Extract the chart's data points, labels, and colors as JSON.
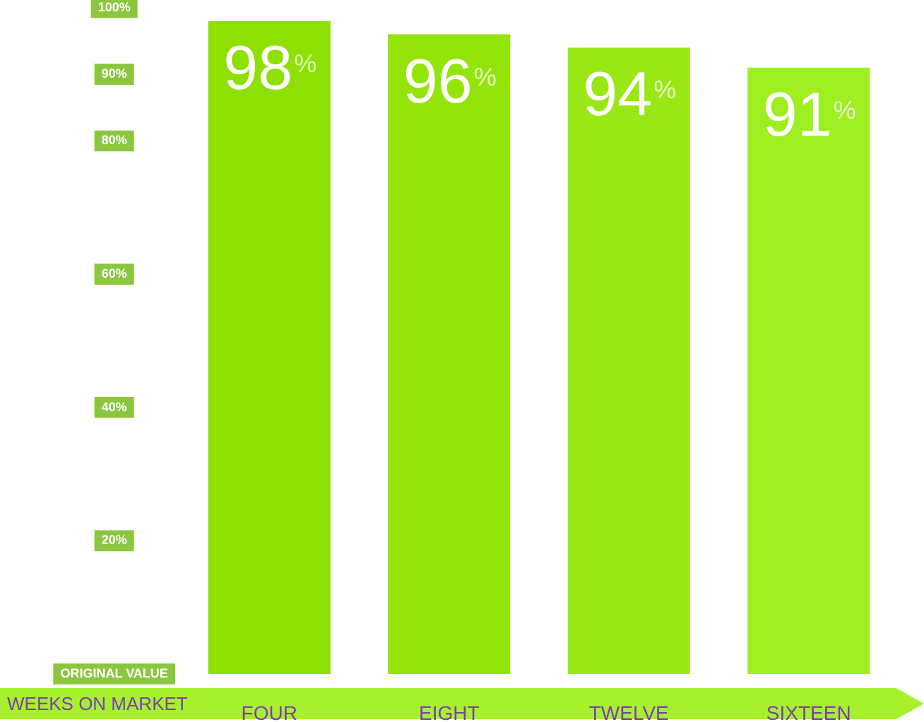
{
  "chart_data": {
    "type": "bar",
    "xlabel": "WEEKS ON MARKET",
    "categories": [
      "FOUR",
      "EIGHT",
      "TWELVE",
      "SIXTEEN"
    ],
    "values": [
      98,
      96,
      94,
      91
    ],
    "colors": [
      "#8ee000",
      "#94e40a",
      "#99e816",
      "#9fee22"
    ],
    "value_labels": [
      "98%",
      "96%",
      "94%",
      "91%"
    ],
    "ylim": [
      0,
      100
    ],
    "yticks": [
      {
        "value": 0,
        "label": "ORIGINAL VALUE"
      },
      {
        "value": 20,
        "label": "20%"
      },
      {
        "value": 40,
        "label": "40%"
      },
      {
        "value": 60,
        "label": "60%"
      },
      {
        "value": 80,
        "label": "80%"
      },
      {
        "value": 90,
        "label": "90%"
      },
      {
        "value": 100,
        "label": "100%"
      }
    ],
    "grid": false,
    "legend": false
  }
}
